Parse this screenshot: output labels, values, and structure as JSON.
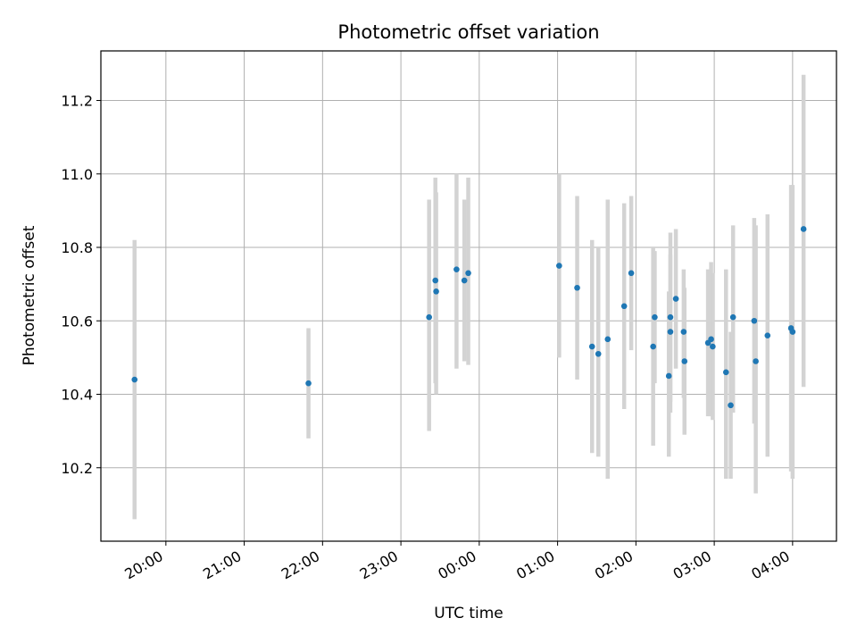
{
  "chart_data": {
    "type": "scatter",
    "title": "Photometric offset variation",
    "xlabel": "UTC time",
    "ylabel": "Photometric offset",
    "x_unit": "hours after 00:00 UTC",
    "xlim": [
      -4.83,
      4.56
    ],
    "ylim": [
      10.0,
      11.335
    ],
    "grid": true,
    "marker_color": "#1f77b4",
    "errorbar_color": "#d3d3d3",
    "x_ticks": [
      {
        "value": -4,
        "label": "20:00"
      },
      {
        "value": -3,
        "label": "21:00"
      },
      {
        "value": -2,
        "label": "22:00"
      },
      {
        "value": -1,
        "label": "23:00"
      },
      {
        "value": 0,
        "label": "00:00"
      },
      {
        "value": 1,
        "label": "01:00"
      },
      {
        "value": 2,
        "label": "02:00"
      },
      {
        "value": 3,
        "label": "03:00"
      },
      {
        "value": 4,
        "label": "04:00"
      }
    ],
    "y_ticks": [
      {
        "value": 10.2,
        "label": "10.2"
      },
      {
        "value": 10.4,
        "label": "10.4"
      },
      {
        "value": 10.6,
        "label": "10.6"
      },
      {
        "value": 10.8,
        "label": "10.8"
      },
      {
        "value": 11.0,
        "label": "11.0"
      },
      {
        "value": 11.2,
        "label": "11.2"
      }
    ],
    "points": [
      {
        "x": -4.4,
        "y": 10.44,
        "lo": 10.06,
        "hi": 10.82
      },
      {
        "x": -2.18,
        "y": 10.43,
        "lo": 10.28,
        "hi": 10.58
      },
      {
        "x": -0.64,
        "y": 10.61,
        "lo": 10.3,
        "hi": 10.93
      },
      {
        "x": -0.56,
        "y": 10.71,
        "lo": 10.43,
        "hi": 10.99
      },
      {
        "x": -0.55,
        "y": 10.68,
        "lo": 10.4,
        "hi": 10.95
      },
      {
        "x": -0.29,
        "y": 10.74,
        "lo": 10.47,
        "hi": 11.0
      },
      {
        "x": -0.19,
        "y": 10.71,
        "lo": 10.49,
        "hi": 10.93
      },
      {
        "x": -0.14,
        "y": 10.73,
        "lo": 10.48,
        "hi": 10.99
      },
      {
        "x": 1.02,
        "y": 10.75,
        "lo": 10.5,
        "hi": 11.0
      },
      {
        "x": 1.25,
        "y": 10.69,
        "lo": 10.44,
        "hi": 10.94
      },
      {
        "x": 1.44,
        "y": 10.53,
        "lo": 10.24,
        "hi": 10.82
      },
      {
        "x": 1.52,
        "y": 10.51,
        "lo": 10.23,
        "hi": 10.8
      },
      {
        "x": 1.64,
        "y": 10.55,
        "lo": 10.17,
        "hi": 10.93
      },
      {
        "x": 1.85,
        "y": 10.64,
        "lo": 10.36,
        "hi": 10.92
      },
      {
        "x": 1.94,
        "y": 10.73,
        "lo": 10.52,
        "hi": 10.94
      },
      {
        "x": 2.22,
        "y": 10.53,
        "lo": 10.26,
        "hi": 10.8
      },
      {
        "x": 2.24,
        "y": 10.61,
        "lo": 10.43,
        "hi": 10.79
      },
      {
        "x": 2.42,
        "y": 10.45,
        "lo": 10.23,
        "hi": 10.68
      },
      {
        "x": 2.44,
        "y": 10.61,
        "lo": 10.38,
        "hi": 10.84
      },
      {
        "x": 2.44,
        "y": 10.57,
        "lo": 10.35,
        "hi": 10.78
      },
      {
        "x": 2.51,
        "y": 10.66,
        "lo": 10.47,
        "hi": 10.85
      },
      {
        "x": 2.61,
        "y": 10.57,
        "lo": 10.39,
        "hi": 10.74
      },
      {
        "x": 2.62,
        "y": 10.49,
        "lo": 10.29,
        "hi": 10.69
      },
      {
        "x": 2.92,
        "y": 10.54,
        "lo": 10.34,
        "hi": 10.74
      },
      {
        "x": 2.96,
        "y": 10.55,
        "lo": 10.34,
        "hi": 10.76
      },
      {
        "x": 2.98,
        "y": 10.53,
        "lo": 10.33,
        "hi": 10.73
      },
      {
        "x": 3.15,
        "y": 10.46,
        "lo": 10.17,
        "hi": 10.74
      },
      {
        "x": 3.21,
        "y": 10.37,
        "lo": 10.17,
        "hi": 10.57
      },
      {
        "x": 3.24,
        "y": 10.61,
        "lo": 10.35,
        "hi": 10.86
      },
      {
        "x": 3.51,
        "y": 10.6,
        "lo": 10.32,
        "hi": 10.88
      },
      {
        "x": 3.53,
        "y": 10.49,
        "lo": 10.13,
        "hi": 10.86
      },
      {
        "x": 3.68,
        "y": 10.56,
        "lo": 10.23,
        "hi": 10.89
      },
      {
        "x": 3.98,
        "y": 10.58,
        "lo": 10.19,
        "hi": 10.97
      },
      {
        "x": 4.0,
        "y": 10.57,
        "lo": 10.17,
        "hi": 10.97
      },
      {
        "x": 4.14,
        "y": 10.85,
        "lo": 10.42,
        "hi": 11.27
      }
    ]
  }
}
